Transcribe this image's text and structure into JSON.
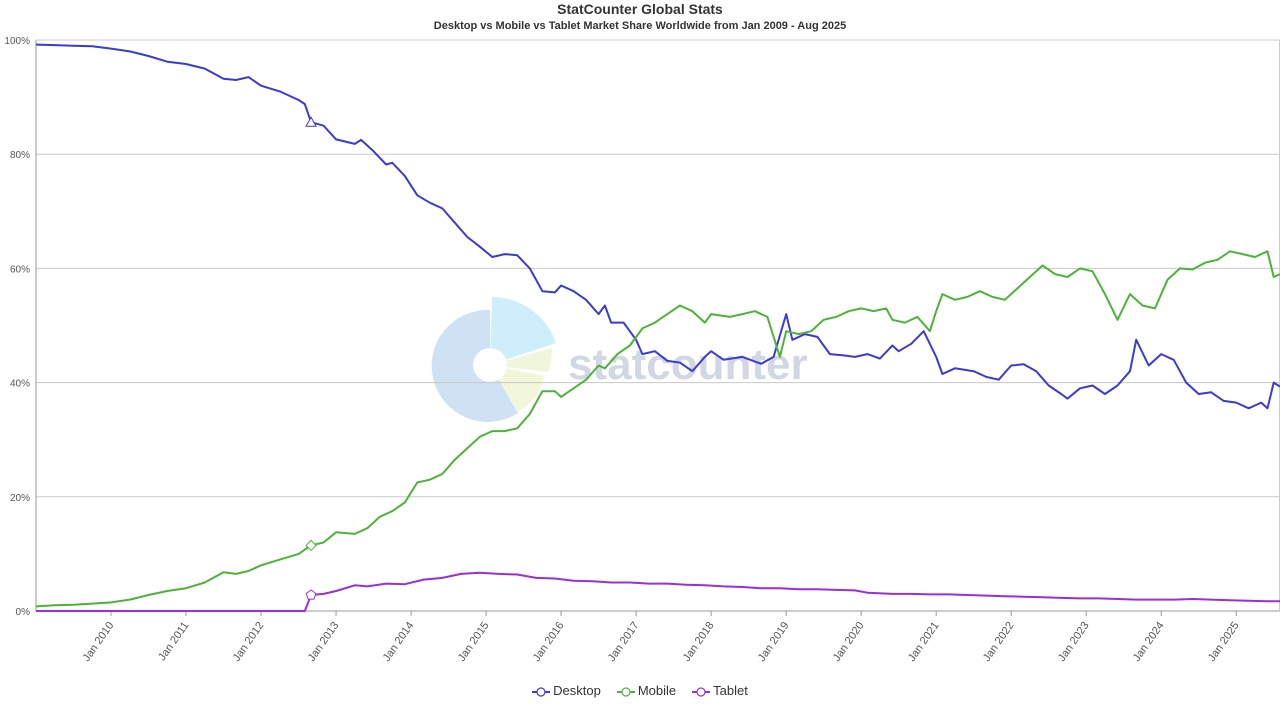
{
  "chart_data": {
    "type": "line",
    "title": "StatCounter Global Stats",
    "subtitle": "Desktop vs Mobile vs Tablet Market Share Worldwide from Jan 2009 - Aug 2025",
    "watermark": "statcounter",
    "xlim": [
      "2009-01",
      "2025-08"
    ],
    "ylim": [
      0,
      100
    ],
    "y_ticks": [
      {
        "value": 0,
        "label": "0%"
      },
      {
        "value": 20,
        "label": "20%"
      },
      {
        "value": 40,
        "label": "40%"
      },
      {
        "value": 60,
        "label": "60%"
      },
      {
        "value": 80,
        "label": "80%"
      },
      {
        "value": 100,
        "label": "100%"
      }
    ],
    "x_ticks": [
      {
        "value": "2010-01",
        "label": "Jan 2010"
      },
      {
        "value": "2011-01",
        "label": "Jan 2011"
      },
      {
        "value": "2012-01",
        "label": "Jan 2012"
      },
      {
        "value": "2013-01",
        "label": "Jan 2013"
      },
      {
        "value": "2014-01",
        "label": "Jan 2014"
      },
      {
        "value": "2015-01",
        "label": "Jan 2015"
      },
      {
        "value": "2016-01",
        "label": "Jan 2016"
      },
      {
        "value": "2017-01",
        "label": "Jan 2017"
      },
      {
        "value": "2018-01",
        "label": "Jan 2018"
      },
      {
        "value": "2019-01",
        "label": "Jan 2019"
      },
      {
        "value": "2020-01",
        "label": "Jan 2020"
      },
      {
        "value": "2021-01",
        "label": "Jan 2021"
      },
      {
        "value": "2022-01",
        "label": "Jan 2022"
      },
      {
        "value": "2023-01",
        "label": "Jan 2023"
      },
      {
        "value": "2024-01",
        "label": "Jan 2024"
      },
      {
        "value": "2025-01",
        "label": "Jan 2025"
      }
    ],
    "grid": true,
    "legend_position": "bottom-center",
    "series": [
      {
        "name": "Desktop",
        "color": "#3a3ad6",
        "marker": "triangle",
        "marker_at": "2012-09",
        "points": [
          [
            "2009-01",
            99.2
          ],
          [
            "2009-04",
            99.1
          ],
          [
            "2009-07",
            99.0
          ],
          [
            "2009-10",
            98.9
          ],
          [
            "2010-01",
            98.5
          ],
          [
            "2010-04",
            98.0
          ],
          [
            "2010-07",
            97.2
          ],
          [
            "2010-10",
            96.2
          ],
          [
            "2011-01",
            95.8
          ],
          [
            "2011-04",
            95.0
          ],
          [
            "2011-07",
            93.2
          ],
          [
            "2011-09",
            93.0
          ],
          [
            "2011-11",
            93.5
          ],
          [
            "2012-01",
            92.0
          ],
          [
            "2012-04",
            91.0
          ],
          [
            "2012-07",
            89.5
          ],
          [
            "2012-08",
            88.8
          ],
          [
            "2012-09",
            85.6
          ],
          [
            "2012-11",
            85.0
          ],
          [
            "2013-01",
            82.6
          ],
          [
            "2013-04",
            81.8
          ],
          [
            "2013-05",
            82.5
          ],
          [
            "2013-07",
            80.5
          ],
          [
            "2013-09",
            78.2
          ],
          [
            "2013-10",
            78.5
          ],
          [
            "2013-12",
            76.2
          ],
          [
            "2014-02",
            72.8
          ],
          [
            "2014-04",
            71.5
          ],
          [
            "2014-06",
            70.5
          ],
          [
            "2014-08",
            68.0
          ],
          [
            "2014-10",
            65.5
          ],
          [
            "2014-12",
            63.8
          ],
          [
            "2015-02",
            62.0
          ],
          [
            "2015-04",
            62.5
          ],
          [
            "2015-06",
            62.3
          ],
          [
            "2015-08",
            60.0
          ],
          [
            "2015-10",
            56.0
          ],
          [
            "2015-12",
            55.8
          ],
          [
            "2016-01",
            57.0
          ],
          [
            "2016-03",
            56.0
          ],
          [
            "2016-05",
            54.5
          ],
          [
            "2016-07",
            52.0
          ],
          [
            "2016-08",
            53.5
          ],
          [
            "2016-09",
            50.5
          ],
          [
            "2016-11",
            50.5
          ],
          [
            "2017-01",
            47.5
          ],
          [
            "2017-02",
            45.0
          ],
          [
            "2017-04",
            45.5
          ],
          [
            "2017-06",
            43.8
          ],
          [
            "2017-08",
            43.5
          ],
          [
            "2017-10",
            42.0
          ],
          [
            "2017-12",
            44.5
          ],
          [
            "2018-01",
            45.5
          ],
          [
            "2018-03",
            44.0
          ],
          [
            "2018-06",
            44.5
          ],
          [
            "2018-09",
            43.3
          ],
          [
            "2018-11",
            44.5
          ],
          [
            "2019-01",
            52.0
          ],
          [
            "2019-02",
            47.5
          ],
          [
            "2019-04",
            48.5
          ],
          [
            "2019-06",
            48.0
          ],
          [
            "2019-08",
            45.0
          ],
          [
            "2019-10",
            44.8
          ],
          [
            "2019-12",
            44.5
          ],
          [
            "2020-02",
            45.0
          ],
          [
            "2020-04",
            44.2
          ],
          [
            "2020-06",
            46.5
          ],
          [
            "2020-07",
            45.5
          ],
          [
            "2020-09",
            46.8
          ],
          [
            "2020-11",
            49.0
          ],
          [
            "2021-01",
            44.5
          ],
          [
            "2021-02",
            41.5
          ],
          [
            "2021-04",
            42.5
          ],
          [
            "2021-07",
            42.0
          ],
          [
            "2021-09",
            41.0
          ],
          [
            "2021-11",
            40.5
          ],
          [
            "2022-01",
            43.0
          ],
          [
            "2022-03",
            43.2
          ],
          [
            "2022-05",
            42.0
          ],
          [
            "2022-07",
            39.5
          ],
          [
            "2022-09",
            38.0
          ],
          [
            "2022-10",
            37.2
          ],
          [
            "2022-12",
            39.0
          ],
          [
            "2023-02",
            39.5
          ],
          [
            "2023-04",
            38.0
          ],
          [
            "2023-06",
            39.5
          ],
          [
            "2023-08",
            42.0
          ],
          [
            "2023-09",
            47.5
          ],
          [
            "2023-11",
            43.0
          ],
          [
            "2024-01",
            45.0
          ],
          [
            "2024-03",
            44.0
          ],
          [
            "2024-05",
            40.0
          ],
          [
            "2024-07",
            38.0
          ],
          [
            "2024-09",
            38.3
          ],
          [
            "2024-11",
            36.8
          ],
          [
            "2025-01",
            36.5
          ],
          [
            "2025-03",
            35.5
          ],
          [
            "2025-05",
            36.5
          ],
          [
            "2025-06",
            35.5
          ],
          [
            "2025-07",
            40.0
          ],
          [
            "2025-08",
            39.3
          ]
        ]
      },
      {
        "name": "Mobile",
        "color": "#4db338",
        "marker": "diamond",
        "marker_at": "2012-09",
        "points": [
          [
            "2009-01",
            0.8
          ],
          [
            "2009-04",
            1.0
          ],
          [
            "2009-07",
            1.1
          ],
          [
            "2009-10",
            1.3
          ],
          [
            "2010-01",
            1.5
          ],
          [
            "2010-04",
            2.0
          ],
          [
            "2010-07",
            2.8
          ],
          [
            "2010-10",
            3.5
          ],
          [
            "2011-01",
            4.0
          ],
          [
            "2011-04",
            5.0
          ],
          [
            "2011-07",
            6.8
          ],
          [
            "2011-09",
            6.5
          ],
          [
            "2011-11",
            7.0
          ],
          [
            "2012-01",
            8.0
          ],
          [
            "2012-04",
            9.0
          ],
          [
            "2012-07",
            10.0
          ],
          [
            "2012-09",
            11.5
          ],
          [
            "2012-11",
            12.0
          ],
          [
            "2013-01",
            13.8
          ],
          [
            "2013-04",
            13.5
          ],
          [
            "2013-06",
            14.5
          ],
          [
            "2013-08",
            16.5
          ],
          [
            "2013-10",
            17.5
          ],
          [
            "2013-12",
            19.0
          ],
          [
            "2014-02",
            22.5
          ],
          [
            "2014-04",
            23.0
          ],
          [
            "2014-06",
            24.0
          ],
          [
            "2014-08",
            26.5
          ],
          [
            "2014-10",
            28.5
          ],
          [
            "2014-12",
            30.5
          ],
          [
            "2015-02",
            31.5
          ],
          [
            "2015-04",
            31.5
          ],
          [
            "2015-06",
            32.0
          ],
          [
            "2015-08",
            34.5
          ],
          [
            "2015-10",
            38.5
          ],
          [
            "2015-12",
            38.5
          ],
          [
            "2016-01",
            37.5
          ],
          [
            "2016-03",
            39.0
          ],
          [
            "2016-05",
            40.5
          ],
          [
            "2016-07",
            43.0
          ],
          [
            "2016-08",
            42.5
          ],
          [
            "2016-10",
            45.0
          ],
          [
            "2016-12",
            46.5
          ],
          [
            "2017-02",
            49.5
          ],
          [
            "2017-04",
            50.5
          ],
          [
            "2017-06",
            52.0
          ],
          [
            "2017-08",
            53.5
          ],
          [
            "2017-10",
            52.5
          ],
          [
            "2017-12",
            50.5
          ],
          [
            "2018-01",
            52.0
          ],
          [
            "2018-04",
            51.5
          ],
          [
            "2018-06",
            52.0
          ],
          [
            "2018-08",
            52.5
          ],
          [
            "2018-10",
            51.5
          ],
          [
            "2018-12",
            44.5
          ],
          [
            "2019-01",
            49.0
          ],
          [
            "2019-03",
            48.5
          ],
          [
            "2019-05",
            49.0
          ],
          [
            "2019-07",
            51.0
          ],
          [
            "2019-09",
            51.5
          ],
          [
            "2019-11",
            52.5
          ],
          [
            "2020-01",
            53.0
          ],
          [
            "2020-03",
            52.5
          ],
          [
            "2020-05",
            53.0
          ],
          [
            "2020-06",
            51.0
          ],
          [
            "2020-08",
            50.5
          ],
          [
            "2020-10",
            51.5
          ],
          [
            "2020-12",
            49.0
          ],
          [
            "2021-01",
            52.5
          ],
          [
            "2021-02",
            55.5
          ],
          [
            "2021-04",
            54.5
          ],
          [
            "2021-06",
            55.0
          ],
          [
            "2021-08",
            56.0
          ],
          [
            "2021-10",
            55.0
          ],
          [
            "2021-12",
            54.5
          ],
          [
            "2022-02",
            56.5
          ],
          [
            "2022-04",
            58.5
          ],
          [
            "2022-06",
            60.5
          ],
          [
            "2022-08",
            59.0
          ],
          [
            "2022-10",
            58.5
          ],
          [
            "2022-12",
            60.0
          ],
          [
            "2023-02",
            59.5
          ],
          [
            "2023-04",
            55.5
          ],
          [
            "2023-06",
            51.0
          ],
          [
            "2023-08",
            55.5
          ],
          [
            "2023-10",
            53.5
          ],
          [
            "2023-12",
            53.0
          ],
          [
            "2024-02",
            58.0
          ],
          [
            "2024-04",
            60.0
          ],
          [
            "2024-06",
            59.8
          ],
          [
            "2024-08",
            61.0
          ],
          [
            "2024-10",
            61.5
          ],
          [
            "2024-12",
            63.0
          ],
          [
            "2025-02",
            62.5
          ],
          [
            "2025-04",
            62.0
          ],
          [
            "2025-06",
            63.0
          ],
          [
            "2025-07",
            58.5
          ],
          [
            "2025-08",
            59.0
          ]
        ]
      },
      {
        "name": "Tablet",
        "color": "#9b2fd6",
        "marker": "pentagon",
        "marker_at": "2012-09",
        "points": [
          [
            "2009-01",
            0.0
          ],
          [
            "2010-01",
            0.0
          ],
          [
            "2011-01",
            0.0
          ],
          [
            "2012-01",
            0.0
          ],
          [
            "2012-08",
            0.0
          ],
          [
            "2012-09",
            2.8
          ],
          [
            "2012-11",
            3.0
          ],
          [
            "2013-01",
            3.5
          ],
          [
            "2013-04",
            4.5
          ],
          [
            "2013-06",
            4.3
          ],
          [
            "2013-09",
            4.8
          ],
          [
            "2013-12",
            4.7
          ],
          [
            "2014-03",
            5.5
          ],
          [
            "2014-06",
            5.8
          ],
          [
            "2014-09",
            6.5
          ],
          [
            "2014-12",
            6.7
          ],
          [
            "2015-03",
            6.5
          ],
          [
            "2015-06",
            6.4
          ],
          [
            "2015-09",
            5.8
          ],
          [
            "2015-12",
            5.7
          ],
          [
            "2016-03",
            5.3
          ],
          [
            "2016-06",
            5.2
          ],
          [
            "2016-09",
            5.0
          ],
          [
            "2016-12",
            5.0
          ],
          [
            "2017-03",
            4.8
          ],
          [
            "2017-06",
            4.8
          ],
          [
            "2017-09",
            4.6
          ],
          [
            "2017-12",
            4.5
          ],
          [
            "2018-03",
            4.3
          ],
          [
            "2018-06",
            4.2
          ],
          [
            "2018-09",
            4.0
          ],
          [
            "2018-12",
            4.0
          ],
          [
            "2019-03",
            3.8
          ],
          [
            "2019-06",
            3.8
          ],
          [
            "2019-09",
            3.7
          ],
          [
            "2019-12",
            3.6
          ],
          [
            "2020-02",
            3.2
          ],
          [
            "2020-06",
            3.0
          ],
          [
            "2020-09",
            3.0
          ],
          [
            "2020-12",
            2.9
          ],
          [
            "2021-03",
            2.9
          ],
          [
            "2021-06",
            2.8
          ],
          [
            "2021-09",
            2.7
          ],
          [
            "2021-12",
            2.6
          ],
          [
            "2022-03",
            2.5
          ],
          [
            "2022-06",
            2.4
          ],
          [
            "2022-09",
            2.3
          ],
          [
            "2022-12",
            2.2
          ],
          [
            "2023-03",
            2.2
          ],
          [
            "2023-06",
            2.1
          ],
          [
            "2023-09",
            2.0
          ],
          [
            "2023-12",
            2.0
          ],
          [
            "2024-03",
            2.0
          ],
          [
            "2024-06",
            2.1
          ],
          [
            "2024-09",
            2.0
          ],
          [
            "2024-12",
            1.9
          ],
          [
            "2025-03",
            1.8
          ],
          [
            "2025-06",
            1.7
          ],
          [
            "2025-08",
            1.7
          ]
        ]
      }
    ]
  }
}
